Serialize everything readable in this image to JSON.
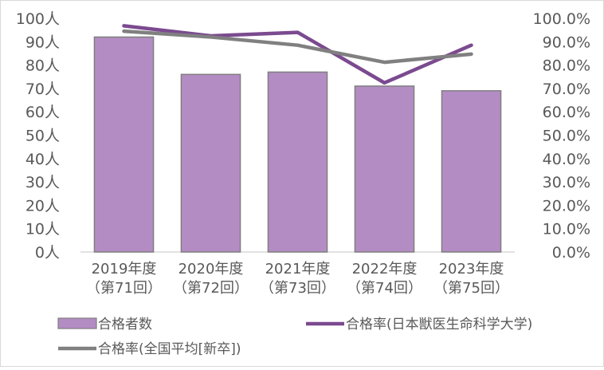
{
  "chart_data": {
    "type": "bar",
    "categories": [
      [
        "2019年度",
        "（第71回）"
      ],
      [
        "2020年度",
        "（第72回）"
      ],
      [
        "2021年度",
        "（第73回）"
      ],
      [
        "2022年度",
        "（第74回）"
      ],
      [
        "2023年度",
        "（第75回）"
      ]
    ],
    "series": [
      {
        "name": "合格者数",
        "type": "bar",
        "axis": "left",
        "color": "#b48cc4",
        "values": [
          92,
          76,
          77,
          71,
          69
        ]
      },
      {
        "name": "合格率(日本獣医生命科学大学)",
        "type": "line",
        "axis": "right",
        "color": "#7b4a8f",
        "values": [
          96.8,
          92.5,
          94.0,
          72.4,
          88.5
        ]
      },
      {
        "name": "合格率(全国平均[新卒])",
        "type": "line",
        "axis": "right",
        "color": "#808080",
        "values": [
          94.5,
          92.0,
          88.5,
          81.2,
          84.7
        ]
      }
    ],
    "y_left": {
      "min": 0,
      "max": 100,
      "step": 10,
      "tick_labels": [
        "0人",
        "10人",
        "20人",
        "30人",
        "40人",
        "50人",
        "60人",
        "70人",
        "80人",
        "90人",
        "100人"
      ]
    },
    "y_right": {
      "min": 0,
      "max": 100,
      "step": 10,
      "tick_labels": [
        "0.0%",
        "10.0%",
        "20.0%",
        "30.0%",
        "40.0%",
        "50.0%",
        "60.0%",
        "70.0%",
        "80.0%",
        "90.0%",
        "100.0%"
      ]
    },
    "grid": false,
    "legend_position": "bottom"
  }
}
